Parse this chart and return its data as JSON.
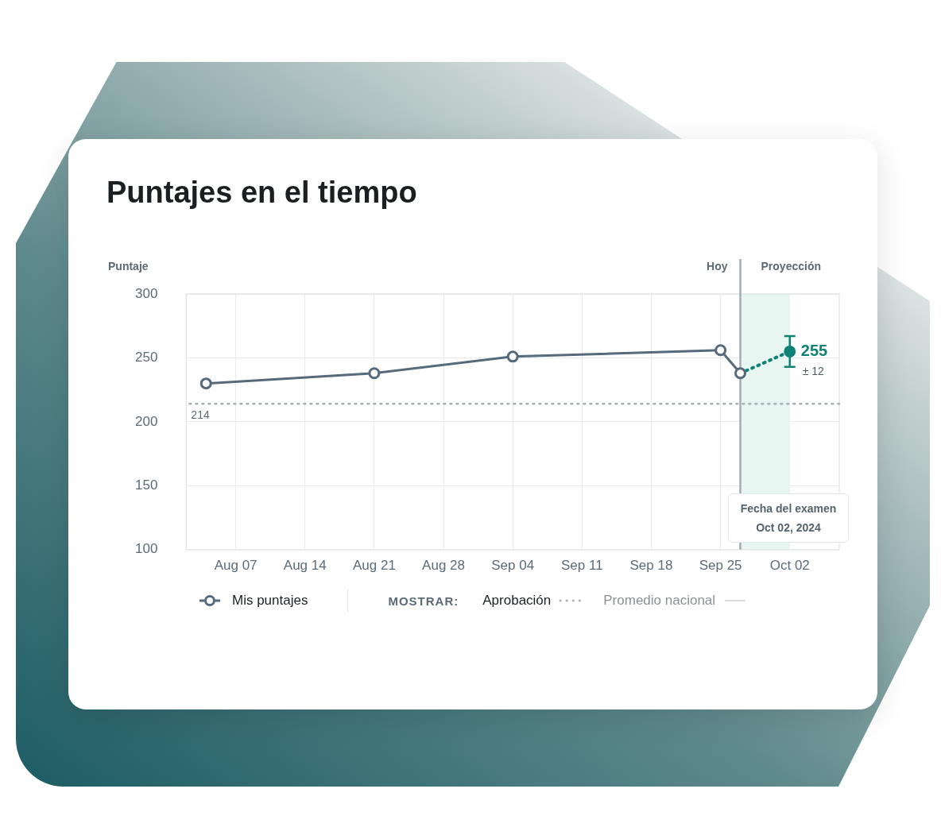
{
  "chart_data": {
    "type": "line",
    "title": "Puntajes en el tiempo",
    "ylabel": "Puntaje",
    "xlim": [
      "2024-08-02",
      "2024-10-07"
    ],
    "xticks": [
      {
        "value": "2024-08-07",
        "label": "Aug 07"
      },
      {
        "value": "2024-08-14",
        "label": "Aug 14"
      },
      {
        "value": "2024-08-21",
        "label": "Aug 21"
      },
      {
        "value": "2024-08-28",
        "label": "Aug 28"
      },
      {
        "value": "2024-09-04",
        "label": "Sep 04"
      },
      {
        "value": "2024-09-11",
        "label": "Sep 11"
      },
      {
        "value": "2024-09-18",
        "label": "Sep 18"
      },
      {
        "value": "2024-09-25",
        "label": "Sep 25"
      },
      {
        "value": "2024-10-02",
        "label": "Oct 02"
      }
    ],
    "ylim": [
      100,
      300
    ],
    "yticks": [
      100,
      150,
      200,
      250,
      300
    ],
    "grid": true,
    "legend": "bottom",
    "series": [
      {
        "name": "Mis puntajes",
        "type": "line",
        "color": "#566a7c",
        "marker": "circle",
        "line_style": "solid",
        "x": [
          "2024-08-04",
          "2024-08-21",
          "2024-09-04",
          "2024-09-25",
          "2024-09-27"
        ],
        "values": [
          230,
          238,
          251,
          256,
          238
        ]
      },
      {
        "type": "line",
        "color": "#0f8275",
        "marker": "circle",
        "line_style": "dotted",
        "x": [
          "2024-09-27",
          "2024-10-02"
        ],
        "values": [
          238,
          255
        ],
        "errors": [
          null,
          12
        ],
        "value_labels": [
          null,
          "255"
        ]
      }
    ],
    "ref_lines": [
      {
        "axis": "y",
        "value": 214,
        "label": "214",
        "color": "#a9b0b6",
        "line_style": "dotted"
      },
      {
        "axis": "x",
        "value": "2024-09-27",
        "label": "Hoy",
        "color": "#a3adb5",
        "line_style": "solid"
      }
    ],
    "bands": [
      {
        "axis": "x",
        "from": "2024-09-27",
        "to": "2024-10-02",
        "label": "Proyección",
        "color": "#e7f6f1"
      }
    ],
    "annotations": [
      "Fecha del examen Oct 02, 2024",
      {
        "text": "± 12",
        "x": "2024-10-02",
        "y": 255
      },
      "MOSTRAR:",
      "Aprobación",
      "Promedio nacional"
    ]
  }
}
